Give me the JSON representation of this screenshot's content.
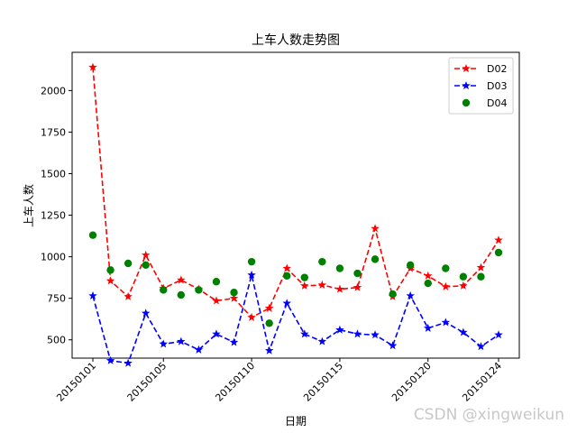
{
  "chart_data": {
    "type": "line",
    "title": "上车人数走势图",
    "xlabel": "日期",
    "ylabel": "上车人数",
    "ylim": [
      390,
      2230
    ],
    "yticks": [
      500,
      750,
      1000,
      1250,
      1500,
      1750,
      2000
    ],
    "xticks": [
      "20150101",
      "20150105",
      "20150110",
      "20150115",
      "20150120",
      "20150124"
    ],
    "categories": [
      "20150101",
      "20150102",
      "20150103",
      "20150104",
      "20150105",
      "20150106",
      "20150107",
      "20150108",
      "20150109",
      "20150110",
      "20150111",
      "20150112",
      "20150113",
      "20150114",
      "20150115",
      "20150116",
      "20150117",
      "20150118",
      "20150119",
      "20150120",
      "20150121",
      "20150122",
      "20150123",
      "20150124"
    ],
    "legend_position": "top-right",
    "grid": false,
    "series": [
      {
        "name": "D02",
        "color": "#ff0000",
        "style": "dashed line with star markers",
        "values": [
          2140,
          855,
          760,
          1010,
          810,
          860,
          805,
          735,
          750,
          635,
          690,
          930,
          825,
          830,
          805,
          815,
          1170,
          760,
          930,
          885,
          820,
          825,
          935,
          1100
        ]
      },
      {
        "name": "D03",
        "color": "#0000ff",
        "style": "dashed line with star markers",
        "values": [
          765,
          375,
          360,
          660,
          475,
          490,
          440,
          535,
          485,
          890,
          435,
          720,
          535,
          490,
          560,
          535,
          530,
          465,
          765,
          570,
          605,
          545,
          460,
          530
        ]
      },
      {
        "name": "D04",
        "color": "#008000",
        "style": "circle markers only",
        "values": [
          1130,
          920,
          960,
          950,
          800,
          770,
          800,
          850,
          785,
          970,
          600,
          885,
          875,
          970,
          930,
          900,
          985,
          775,
          950,
          840,
          930,
          880,
          880,
          1025
        ]
      }
    ]
  },
  "watermark": "CSDN @xingweikun"
}
